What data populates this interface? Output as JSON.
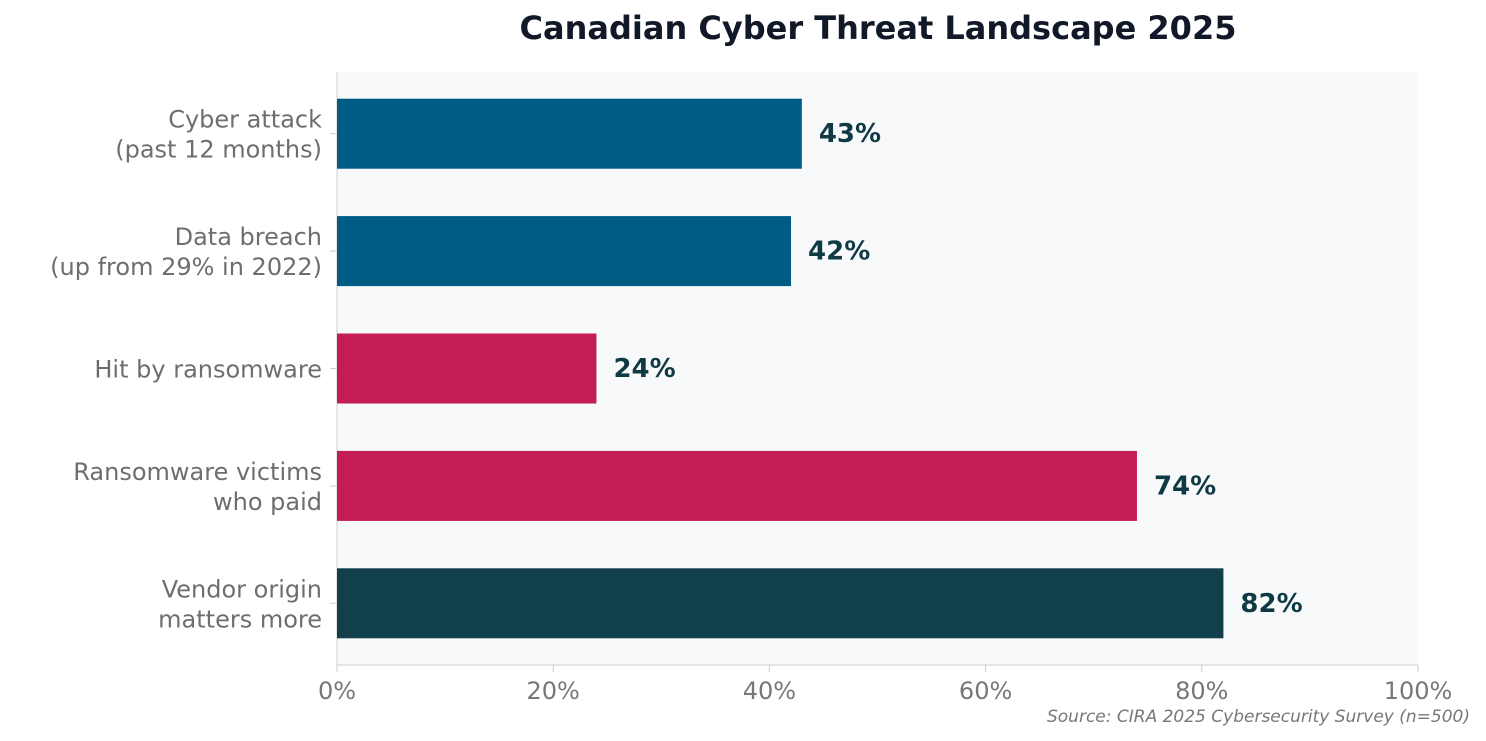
{
  "chart_data": {
    "type": "bar",
    "orientation": "horizontal",
    "title": "Canadian Cyber Threat Landscape 2025",
    "categories": [
      "Cyber attack\n(past 12 months)",
      "Data breach\n(up from 29% in 2022)",
      "Hit by ransomware",
      "Ransomware victims\nwho paid",
      "Vendor origin\nmatters more"
    ],
    "values": [
      43,
      42,
      24,
      74,
      82
    ],
    "value_labels": [
      "43%",
      "42%",
      "24%",
      "74%",
      "82%"
    ],
    "colors": [
      "#005b85",
      "#005b85",
      "#c41c54",
      "#c41c54",
      "#123f4c"
    ],
    "xlim": [
      0,
      100
    ],
    "xticks": [
      {
        "value": 0,
        "label": "0%"
      },
      {
        "value": 20,
        "label": "20%"
      },
      {
        "value": 40,
        "label": "40%"
      },
      {
        "value": 60,
        "label": "60%"
      },
      {
        "value": 80,
        "label": "80%"
      },
      {
        "value": 100,
        "label": "100%"
      }
    ],
    "source": "Source: CIRA 2025 Cybersecurity Survey (n=500)"
  }
}
